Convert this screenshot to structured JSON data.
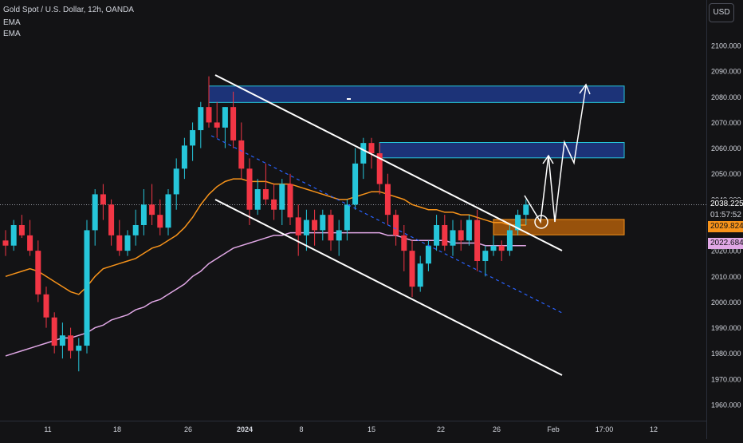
{
  "header": {
    "symbol_line": "Gold Spot / U.S. Dollar, 12h, OANDA",
    "indicator_1": "EMA",
    "indicator_2": "EMA"
  },
  "currency_button": "USD",
  "price_tags": {
    "last_price": "2038.225",
    "countdown": "01:57:52",
    "ema_fast": "2029.824",
    "ema_slow": "2022.684"
  },
  "colors": {
    "background": "#131315",
    "bull": "#26c6da",
    "bear": "#f23645",
    "ema_fast": "#f7931a",
    "ema_slow": "#e1a8e6",
    "zone_blue": "#1e3a8a",
    "zone_orange": "#b05e0a",
    "trendline": "#ffffff",
    "axis_text": "#d1d4dc"
  },
  "chart_data": {
    "type": "candlestick",
    "title": "Gold Spot / U.S. Dollar, 12h, OANDA",
    "ylim": [
      1955,
      2107
    ],
    "y_ticks": [
      1960,
      1970,
      1980,
      1990,
      2000,
      2010,
      2020,
      2030,
      2040,
      2050,
      2060,
      2070,
      2080,
      2090,
      2100
    ],
    "x_ticks": [
      "11",
      "18",
      "26",
      "2024",
      "8",
      "15",
      "22",
      "26",
      "Feb",
      "17:00",
      "12"
    ],
    "candles": [
      [
        2024,
        2028,
        2018,
        2022
      ],
      [
        2022,
        2032,
        2020,
        2030
      ],
      [
        2030,
        2034,
        2025,
        2026
      ],
      [
        2026,
        2032,
        2018,
        2020
      ],
      [
        2020,
        2024,
        2000,
        2003
      ],
      [
        2003,
        2006,
        1990,
        1994
      ],
      [
        1994,
        1996,
        1980,
        1983
      ],
      [
        1983,
        1992,
        1978,
        1987
      ],
      [
        1987,
        1990,
        1978,
        1981
      ],
      [
        1981,
        1986,
        1973,
        1983
      ],
      [
        1983,
        2032,
        1980,
        2028
      ],
      [
        2028,
        2044,
        2022,
        2042
      ],
      [
        2042,
        2046,
        2032,
        2038
      ],
      [
        2038,
        2040,
        2022,
        2026
      ],
      [
        2026,
        2032,
        2018,
        2020
      ],
      [
        2020,
        2028,
        2018,
        2026
      ],
      [
        2026,
        2036,
        2022,
        2030
      ],
      [
        2030,
        2044,
        2026,
        2038
      ],
      [
        2038,
        2046,
        2030,
        2034
      ],
      [
        2034,
        2040,
        2026,
        2029
      ],
      [
        2029,
        2044,
        2026,
        2042
      ],
      [
        2042,
        2056,
        2036,
        2052
      ],
      [
        2052,
        2064,
        2048,
        2061
      ],
      [
        2061,
        2070,
        2055,
        2067
      ],
      [
        2067,
        2078,
        2060,
        2076
      ],
      [
        2076,
        2088,
        2068,
        2070
      ],
      [
        2070,
        2078,
        2064,
        2068
      ],
      [
        2068,
        2076,
        2060,
        2076
      ],
      [
        2076,
        2082,
        2060,
        2063
      ],
      [
        2063,
        2070,
        2048,
        2052
      ],
      [
        2052,
        2056,
        2030,
        2036
      ],
      [
        2036,
        2048,
        2034,
        2044
      ],
      [
        2044,
        2054,
        2038,
        2040
      ],
      [
        2040,
        2046,
        2032,
        2036
      ],
      [
        2036,
        2048,
        2030,
        2046
      ],
      [
        2046,
        2050,
        2030,
        2033
      ],
      [
        2033,
        2038,
        2018,
        2026
      ],
      [
        2026,
        2036,
        2020,
        2032
      ],
      [
        2032,
        2036,
        2022,
        2028
      ],
      [
        2028,
        2036,
        2024,
        2034
      ],
      [
        2034,
        2036,
        2020,
        2024
      ],
      [
        2024,
        2032,
        2018,
        2028
      ],
      [
        2028,
        2040,
        2024,
        2038
      ],
      [
        2038,
        2060,
        2036,
        2054
      ],
      [
        2054,
        2064,
        2048,
        2062
      ],
      [
        2062,
        2064,
        2052,
        2058
      ],
      [
        2058,
        2062,
        2042,
        2046
      ],
      [
        2046,
        2050,
        2030,
        2034
      ],
      [
        2034,
        2036,
        2022,
        2026
      ],
      [
        2026,
        2030,
        2012,
        2020
      ],
      [
        2020,
        2024,
        2002,
        2006
      ],
      [
        2006,
        2018,
        2004,
        2015
      ],
      [
        2015,
        2024,
        2012,
        2022
      ],
      [
        2022,
        2034,
        2020,
        2030
      ],
      [
        2030,
        2034,
        2020,
        2022
      ],
      [
        2022,
        2032,
        2018,
        2028
      ],
      [
        2028,
        2032,
        2020,
        2024
      ],
      [
        2024,
        2034,
        2022,
        2032
      ],
      [
        2032,
        2036,
        2012,
        2016
      ],
      [
        2016,
        2022,
        2010,
        2020
      ],
      [
        2020,
        2026,
        2018,
        2022
      ],
      [
        2022,
        2024,
        2016,
        2020
      ],
      [
        2020,
        2030,
        2018,
        2028
      ],
      [
        2028,
        2036,
        2026,
        2034
      ],
      [
        2034,
        2040,
        2030,
        2038
      ]
    ],
    "ema_fast_values": [
      2010,
      2011,
      2012,
      2013,
      2012,
      2010,
      2008,
      2006,
      2004,
      2003,
      2006,
      2010,
      2013,
      2014,
      2015,
      2016,
      2017,
      2019,
      2021,
      2022,
      2024,
      2026,
      2029,
      2033,
      2038,
      2042,
      2045,
      2047,
      2048,
      2048,
      2047,
      2047,
      2047,
      2046,
      2046,
      2046,
      2045,
      2044,
      2043,
      2042,
      2041,
      2040,
      2040,
      2041,
      2042,
      2043,
      2043,
      2042,
      2041,
      2040,
      2038,
      2037,
      2036,
      2036,
      2035,
      2035,
      2034,
      2034,
      2033,
      2032,
      2031,
      2031,
      2030,
      2030,
      2030
    ],
    "ema_slow_values": [
      1979,
      1980,
      1981,
      1982,
      1983,
      1984,
      1985,
      1986,
      1986,
      1987,
      1988,
      1990,
      1991,
      1993,
      1994,
      1995,
      1997,
      1998,
      2000,
      2001,
      2003,
      2005,
      2007,
      2010,
      2012,
      2015,
      2017,
      2019,
      2021,
      2022,
      2023,
      2024,
      2025,
      2026,
      2026,
      2027,
      2027,
      2027,
      2027,
      2027,
      2027,
      2027,
      2027,
      2027,
      2027,
      2027,
      2027,
      2026,
      2026,
      2025,
      2024,
      2024,
      2024,
      2024,
      2024,
      2023,
      2023,
      2023,
      2023,
      2022,
      2022,
      2022,
      2022,
      2022,
      2022
    ],
    "zones": [
      {
        "name": "upper-supply-zone",
        "from": 2077.8,
        "to": 2084.2,
        "start_bar": 25,
        "end_bar": 100
      },
      {
        "name": "mid-supply-zone",
        "from": 2056.2,
        "to": 2062.2,
        "start_bar": 46,
        "end_bar": 100
      },
      {
        "name": "demand-zone",
        "from": 2026.2,
        "to": 2032.2,
        "start_bar": 60,
        "end_bar": 100
      }
    ],
    "grid": false
  }
}
